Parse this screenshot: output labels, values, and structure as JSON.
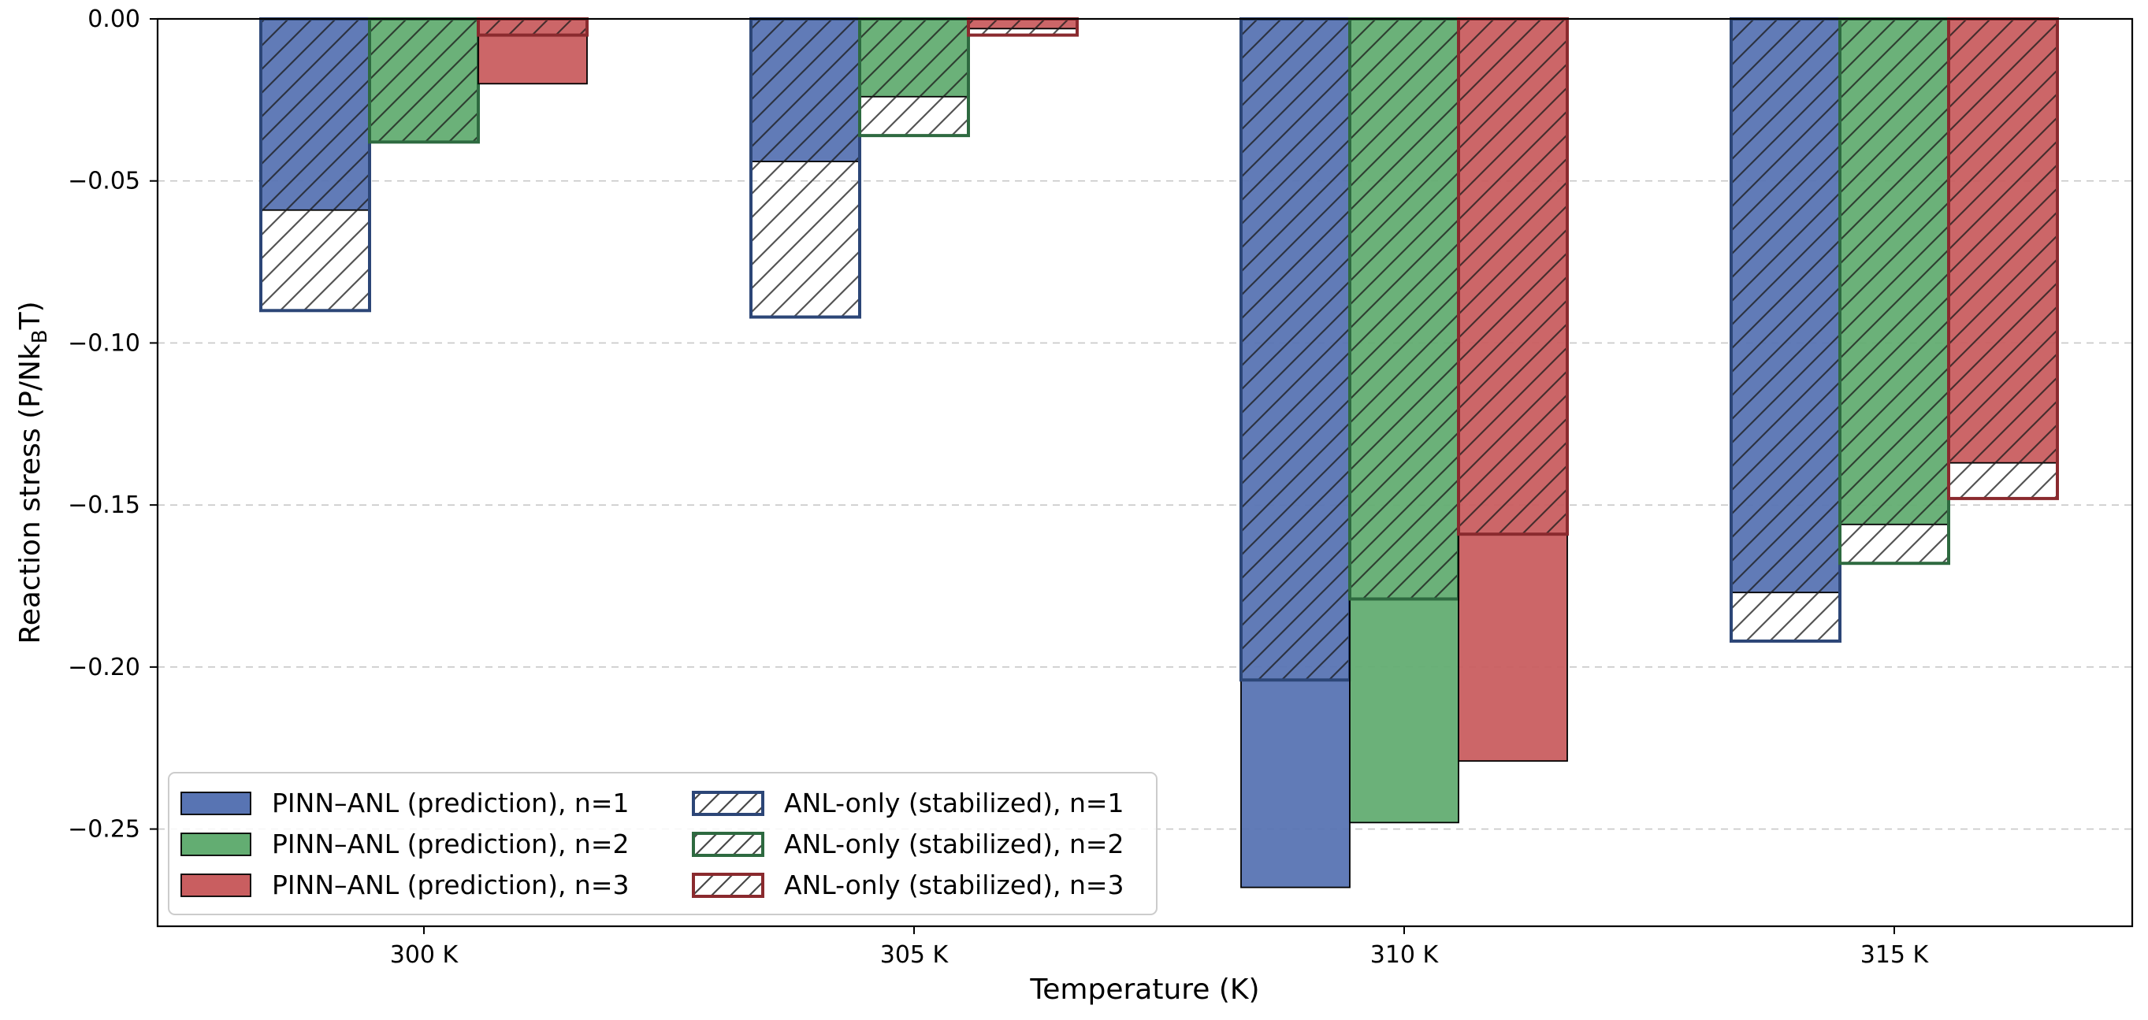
{
  "chart_data": {
    "type": "bar",
    "xlabel": "Temperature (K)",
    "ylabel_main": "Reaction stress (P/Nk",
    "ylabel_sub": "B",
    "ylabel_tail": "T)",
    "ylim": [
      -0.28,
      0.0
    ],
    "yticks": [
      0.0,
      -0.05,
      -0.1,
      -0.15,
      -0.2,
      -0.25
    ],
    "ytick_labels": [
      "0.00",
      "−0.05",
      "−0.10",
      "−0.15",
      "−0.20",
      "−0.25"
    ],
    "grid": "y-dashed",
    "legend_position": "lower-left",
    "categories": [
      "300 K",
      "305 K",
      "310 K",
      "315 K"
    ],
    "series": [
      {
        "name": "PINN–ANL (prediction), n=1",
        "kind": "prediction",
        "n": 1,
        "color": "#5874b3",
        "edge": "#000000",
        "values": [
          -0.059,
          -0.044,
          -0.268,
          -0.177
        ]
      },
      {
        "name": "PINN–ANL (prediction), n=2",
        "kind": "prediction",
        "n": 2,
        "color": "#63ad72",
        "edge": "#000000",
        "values": [
          -0.038,
          -0.024,
          -0.248,
          -0.156
        ]
      },
      {
        "name": "PINN–ANL (prediction), n=3",
        "kind": "prediction",
        "n": 3,
        "color": "#c95e60",
        "edge": "#000000",
        "values": [
          -0.02,
          -0.003,
          -0.229,
          -0.137
        ]
      },
      {
        "name": "ANL-only (stabilized), n=1",
        "kind": "stabilized",
        "n": 1,
        "color": "#2c4677",
        "values": [
          -0.09,
          -0.092,
          -0.204,
          -0.192
        ]
      },
      {
        "name": "ANL-only (stabilized), n=2",
        "kind": "stabilized",
        "n": 2,
        "color": "#2e6a40",
        "values": [
          -0.038,
          -0.036,
          -0.179,
          -0.168
        ]
      },
      {
        "name": "ANL-only (stabilized), n=3",
        "kind": "stabilized",
        "n": 3,
        "color": "#8a2a2e",
        "values": [
          -0.005,
          -0.005,
          -0.159,
          -0.148
        ]
      }
    ]
  }
}
